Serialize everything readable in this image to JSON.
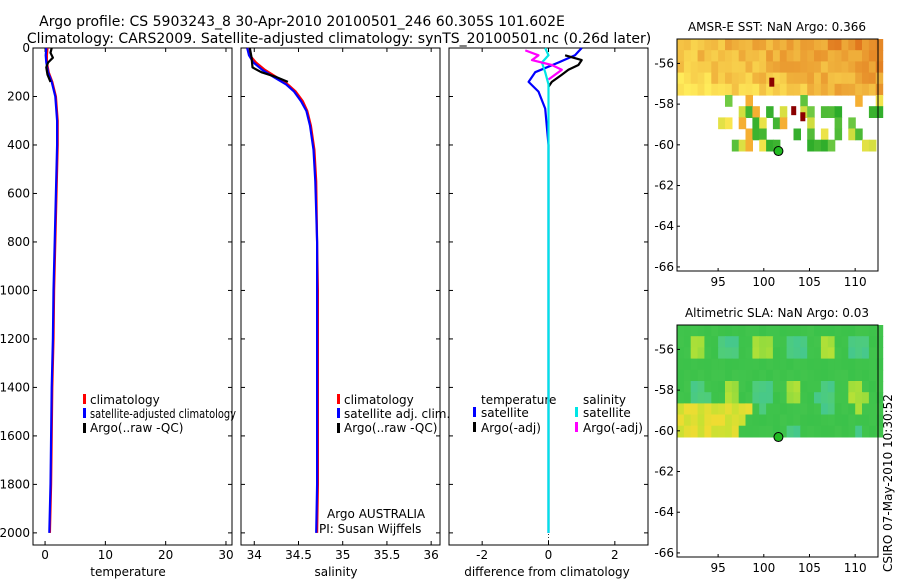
{
  "header": {
    "title_line1": "Argo profile: CS 5903243_8 30-Apr-2010 20100501_246 60.305S 101.602E",
    "title_line2": "Climatology: CARS2009. Satellite-adjusted climatology: synTS_20100501.nc (0.26d later)"
  },
  "side_credit": "CSIRO 07-May-2010 10:30:52",
  "colors": {
    "clim": "#ff0000",
    "sat": "#0000ff",
    "argo": "#000000",
    "sat_sal": "#00e5e5",
    "argo_sal": "#ff00ff"
  },
  "chart_data": [
    {
      "type": "line",
      "name": "temperature-profile",
      "xlabel": "temperature",
      "ylabel": "",
      "xlim": [
        -2,
        31
      ],
      "ylim": [
        0,
        2050
      ],
      "y_reversed": true,
      "xticks": [
        0,
        10,
        20,
        30
      ],
      "yticks": [
        0,
        200,
        400,
        600,
        800,
        1000,
        1200,
        1400,
        1600,
        1800,
        2000
      ],
      "legend": {
        "position": "lower-right",
        "entries": [
          "climatology",
          "satellite-adjusted climatology",
          "Argo(..raw -QC)"
        ]
      },
      "series": [
        {
          "name": "climatology",
          "color": "#ff0000",
          "x": [
            0.4,
            0.3,
            0.3,
            0.6,
            1.2,
            1.8,
            2.1,
            2.1,
            2.0,
            1.9,
            1.7,
            1.5,
            1.4,
            1.2,
            1.1,
            1.0,
            0.9,
            0.8
          ],
          "y": [
            0,
            30,
            60,
            100,
            140,
            200,
            300,
            400,
            500,
            600,
            800,
            1000,
            1200,
            1400,
            1600,
            1800,
            1900,
            2000
          ]
        },
        {
          "name": "satellite-adjusted climatology",
          "color": "#0000ff",
          "x": [
            0.2,
            0.1,
            0.2,
            0.5,
            1.1,
            1.7,
            2.0,
            2.0,
            1.9,
            1.8,
            1.6,
            1.4,
            1.3,
            1.1,
            1.0,
            0.9,
            0.8,
            0.7
          ],
          "y": [
            0,
            30,
            60,
            100,
            140,
            200,
            300,
            400,
            500,
            600,
            800,
            1000,
            1200,
            1400,
            1600,
            1800,
            1900,
            2000
          ]
        },
        {
          "name": "Argo(..raw -QC)",
          "color": "#000000",
          "x": [
            1.1,
            0.9,
            1.3,
            0.5,
            0.2,
            0.4,
            0.9
          ],
          "y": [
            0,
            20,
            40,
            60,
            80,
            110,
            140
          ]
        }
      ]
    },
    {
      "type": "line",
      "name": "salinity-profile",
      "xlabel": "salinity",
      "xlim": [
        33.85,
        36.1
      ],
      "ylim": [
        0,
        2050
      ],
      "y_reversed": true,
      "xticks": [
        34,
        34.5,
        35,
        35.5,
        36
      ],
      "xticklabels": [
        "34",
        "34.5",
        "35",
        "35.5",
        "36"
      ],
      "legend": {
        "position": "lower-right",
        "entries": [
          "climatology",
          "satellite adj. clim.",
          "Argo(..raw -QC)"
        ]
      },
      "annotation": [
        "Argo AUSTRALIA",
        "PI: Susan Wijffels"
      ],
      "series": [
        {
          "name": "climatology",
          "color": "#ff0000",
          "x": [
            33.92,
            33.95,
            34.02,
            34.12,
            34.25,
            34.38,
            34.47,
            34.55,
            34.6,
            34.64,
            34.68,
            34.7,
            34.71,
            34.72,
            34.72,
            34.72,
            34.72,
            34.72,
            34.71
          ],
          "y": [
            0,
            30,
            60,
            90,
            120,
            150,
            180,
            220,
            260,
            320,
            420,
            550,
            800,
            1000,
            1200,
            1400,
            1600,
            1800,
            2000
          ]
        },
        {
          "name": "satellite adj. clim.",
          "color": "#0000ff",
          "x": [
            33.92,
            33.94,
            33.99,
            34.09,
            34.22,
            34.36,
            34.45,
            34.53,
            34.59,
            34.63,
            34.67,
            34.69,
            34.71,
            34.71,
            34.71,
            34.71,
            34.71,
            34.71,
            34.7
          ],
          "y": [
            0,
            30,
            60,
            90,
            120,
            150,
            180,
            220,
            260,
            320,
            420,
            550,
            800,
            1000,
            1200,
            1400,
            1600,
            1800,
            2000
          ]
        },
        {
          "name": "Argo(..raw -QC)",
          "color": "#000000",
          "x": [
            33.95,
            33.97,
            33.98,
            34.08,
            34.25,
            34.38
          ],
          "y": [
            0,
            40,
            80,
            100,
            120,
            140
          ]
        }
      ]
    },
    {
      "type": "line",
      "name": "difference-profile",
      "xlabel": "difference from climatology",
      "xlim": [
        -3,
        3
      ],
      "ylim": [
        0,
        2050
      ],
      "y_reversed": true,
      "xticks": [
        -2,
        0,
        2
      ],
      "legend": {
        "position": "lower-center",
        "groups": [
          {
            "title": "temperature",
            "entries": [
              "satellite",
              "Argo(-adj)"
            ]
          },
          {
            "title": "salinity",
            "entries": [
              "satellite",
              "Argo(-adj)"
            ]
          }
        ]
      },
      "series": [
        {
          "name": "temperature satellite",
          "color": "#0000ff",
          "x": [
            1.0,
            0.8,
            0.3,
            -0.4,
            -0.6,
            -0.3,
            -0.1,
            0.0,
            0.0,
            0.0,
            0.0,
            0.0,
            0.0,
            0.0
          ],
          "y": [
            0,
            30,
            60,
            100,
            140,
            180,
            250,
            400,
            600,
            800,
            1200,
            1600,
            1900,
            2000
          ]
        },
        {
          "name": "temperature Argo(-adj)",
          "color": "#000000",
          "x": [
            0.5,
            1.0,
            0.9,
            0.6,
            0.4,
            0.1,
            0.0
          ],
          "y": [
            30,
            50,
            70,
            90,
            110,
            140,
            160
          ]
        },
        {
          "name": "salinity satellite",
          "color": "#00e5e5",
          "x": [
            -0.1,
            0.0,
            -0.2,
            -0.1,
            0.0,
            0.0,
            0.0,
            0.0,
            0.0,
            0.0,
            0.0
          ],
          "y": [
            0,
            30,
            60,
            100,
            150,
            300,
            600,
            1000,
            1400,
            1800,
            2000
          ]
        },
        {
          "name": "salinity Argo(-adj)",
          "color": "#ff00ff",
          "x": [
            -0.7,
            -0.3,
            -0.5,
            0.1,
            0.4,
            0.2,
            0.0
          ],
          "y": [
            10,
            30,
            50,
            70,
            90,
            110,
            130
          ]
        }
      ]
    },
    {
      "type": "heatmap",
      "name": "sst-map",
      "title": "AMSR-E SST: NaN Argo: 0.366",
      "xlim": [
        90.5,
        112.5
      ],
      "ylim": [
        -66.2,
        -54.8
      ],
      "xticks": [
        95,
        100,
        105,
        110
      ],
      "yticks": [
        -56,
        -58,
        -60,
        -62,
        -64,
        -66
      ],
      "argo_position": {
        "lon": 101.602,
        "lat": -60.305
      },
      "field_extent": {
        "lat_top": -54.8,
        "lat_full_until": -57.1,
        "lat_patchy_until": -60.0
      }
    },
    {
      "type": "heatmap",
      "name": "sla-map",
      "title": "Altimetric SLA: NaN Argo: 0.03",
      "xlim": [
        90.5,
        112.5
      ],
      "ylim": [
        -66.2,
        -54.8
      ],
      "xticks": [
        95,
        100,
        105,
        110
      ],
      "yticks": [
        -56,
        -58,
        -60,
        -62,
        -64,
        -66
      ],
      "argo_position": {
        "lon": 101.602,
        "lat": -60.305
      },
      "field_extent": {
        "lat_top": -54.8,
        "lat_bottom": -60.0
      }
    }
  ]
}
